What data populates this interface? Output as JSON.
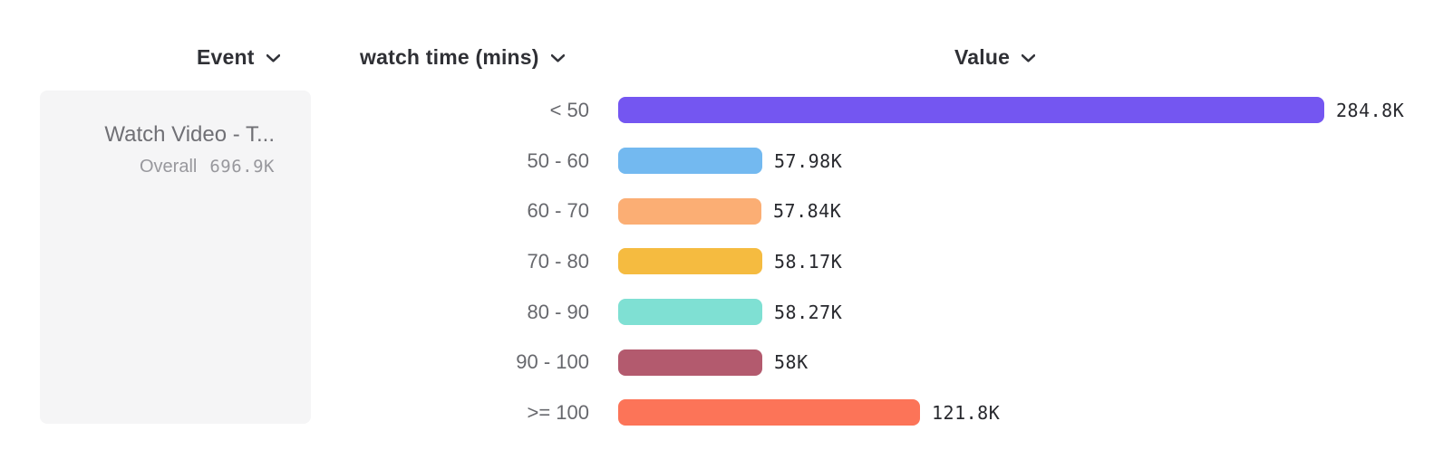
{
  "header": {
    "columns": [
      {
        "label": "Event"
      },
      {
        "label": "watch time (mins)"
      },
      {
        "label": "Value"
      }
    ]
  },
  "event_card": {
    "title": "Watch Video - T...",
    "overall_label": "Overall",
    "overall_value": "696.9K"
  },
  "chart_data": {
    "type": "bar",
    "orientation": "horizontal",
    "category_axis_label": "watch time (mins)",
    "value_axis_label": "Value",
    "categories": [
      "< 50",
      "50 - 60",
      "60 - 70",
      "70 - 80",
      "80 - 90",
      "90 - 100",
      ">= 100"
    ],
    "values": [
      284800,
      57980,
      57840,
      58170,
      58270,
      58000,
      121800
    ],
    "value_labels": [
      "284.8K",
      "57.98K",
      "57.84K",
      "58.17K",
      "58.27K",
      "58K",
      "121.8K"
    ],
    "bar_colors": [
      "#7456f1",
      "#73b9f0",
      "#fbae74",
      "#f5bb40",
      "#7fe0d3",
      "#b35a6e",
      "#fc7458"
    ],
    "max_value": 284800,
    "grid": false,
    "legend": false,
    "total": {
      "label": "Overall",
      "value": "696.9K",
      "event": "Watch Video - T..."
    }
  },
  "colors": {
    "background": "#ffffff",
    "card_background": "#f5f5f6",
    "header_text": "#2f3035",
    "category_text": "#67686d",
    "value_text": "#28292e",
    "card_title_text": "#707075",
    "card_subtitle_text": "#98989d"
  }
}
